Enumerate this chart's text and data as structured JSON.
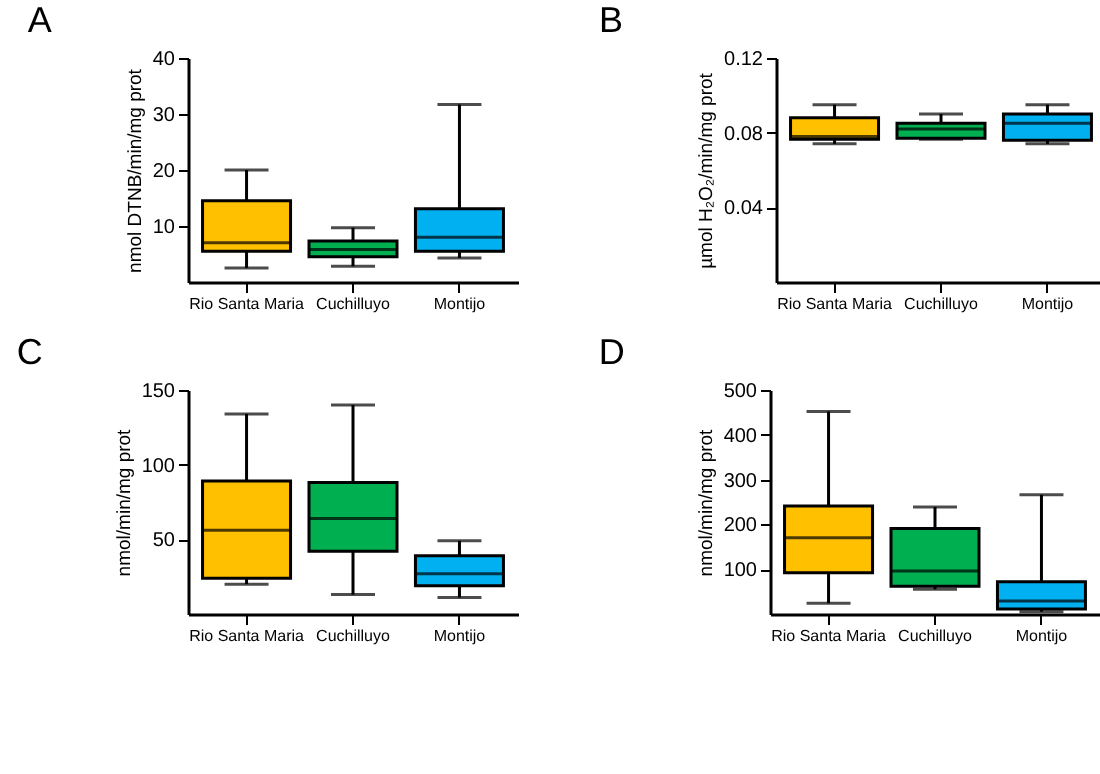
{
  "chart_data": [
    {
      "type": "box",
      "title": "A",
      "ylabel": "nmol DTNB/min/mg prot",
      "categories": [
        "Rio Santa Maria",
        "Cuchilluyo",
        "Montijo"
      ],
      "colors": [
        "#ffc000",
        "#00b050",
        "#00b0f0"
      ],
      "ylim": [
        0,
        40
      ],
      "yticks": [
        10,
        20,
        30,
        40
      ],
      "boxes": [
        {
          "low": 2.5,
          "q1": 5.5,
          "median": 7,
          "q3": 14.5,
          "high": 20
        },
        {
          "low": 2.8,
          "q1": 4.5,
          "median": 5.8,
          "q3": 7.3,
          "high": 9.7
        },
        {
          "low": 4.3,
          "q1": 5.5,
          "median": 8,
          "q3": 13.1,
          "high": 31.7
        }
      ]
    },
    {
      "type": "box",
      "title": "B",
      "ylabel": "µmol H₂O₂/min/mg prot",
      "categories": [
        "Rio Santa Maria",
        "Cuchilluyo",
        "Montijo"
      ],
      "colors": [
        "#ffc000",
        "#00b050",
        "#00b0f0"
      ],
      "ylim": [
        0,
        0.12
      ],
      "yticks": [
        0.04,
        0.08,
        0.12
      ],
      "boxes": [
        {
          "low": 0.074,
          "q1": 0.0765,
          "median": 0.078,
          "q3": 0.088,
          "high": 0.095
        },
        {
          "low": 0.0765,
          "q1": 0.077,
          "median": 0.082,
          "q3": 0.085,
          "high": 0.09
        },
        {
          "low": 0.074,
          "q1": 0.076,
          "median": 0.085,
          "q3": 0.09,
          "high": 0.095
        }
      ]
    },
    {
      "type": "box",
      "title": "C",
      "ylabel": "nmol/min/mg prot",
      "categories": [
        "Rio Santa Maria",
        "Cuchilluyo",
        "Montijo"
      ],
      "colors": [
        "#ffc000",
        "#00b050",
        "#00b0f0"
      ],
      "ylim": [
        0,
        150
      ],
      "yticks": [
        50,
        100,
        150
      ],
      "boxes": [
        {
          "low": 20,
          "q1": 24,
          "median": 56,
          "q3": 89,
          "high": 134
        },
        {
          "low": 13,
          "q1": 42,
          "median": 64,
          "q3": 88,
          "high": 140
        },
        {
          "low": 11,
          "q1": 19,
          "median": 27,
          "q3": 39,
          "high": 49
        }
      ]
    },
    {
      "type": "box",
      "title": "D",
      "ylabel": "nmol/min/mg prot",
      "categories": [
        "Rio Santa Maria",
        "Cuchilluyo",
        "Montijo"
      ],
      "colors": [
        "#ffc000",
        "#00b050",
        "#00b0f0"
      ],
      "ylim": [
        0,
        500
      ],
      "yticks": [
        100,
        200,
        300,
        400,
        500
      ],
      "boxes": [
        {
          "low": 24,
          "q1": 92,
          "median": 170,
          "q3": 241,
          "high": 452
        },
        {
          "low": 55,
          "q1": 62,
          "median": 96,
          "q3": 191,
          "high": 239
        },
        {
          "low": 5,
          "q1": 11,
          "median": 29,
          "q3": 72,
          "high": 266
        }
      ]
    }
  ]
}
